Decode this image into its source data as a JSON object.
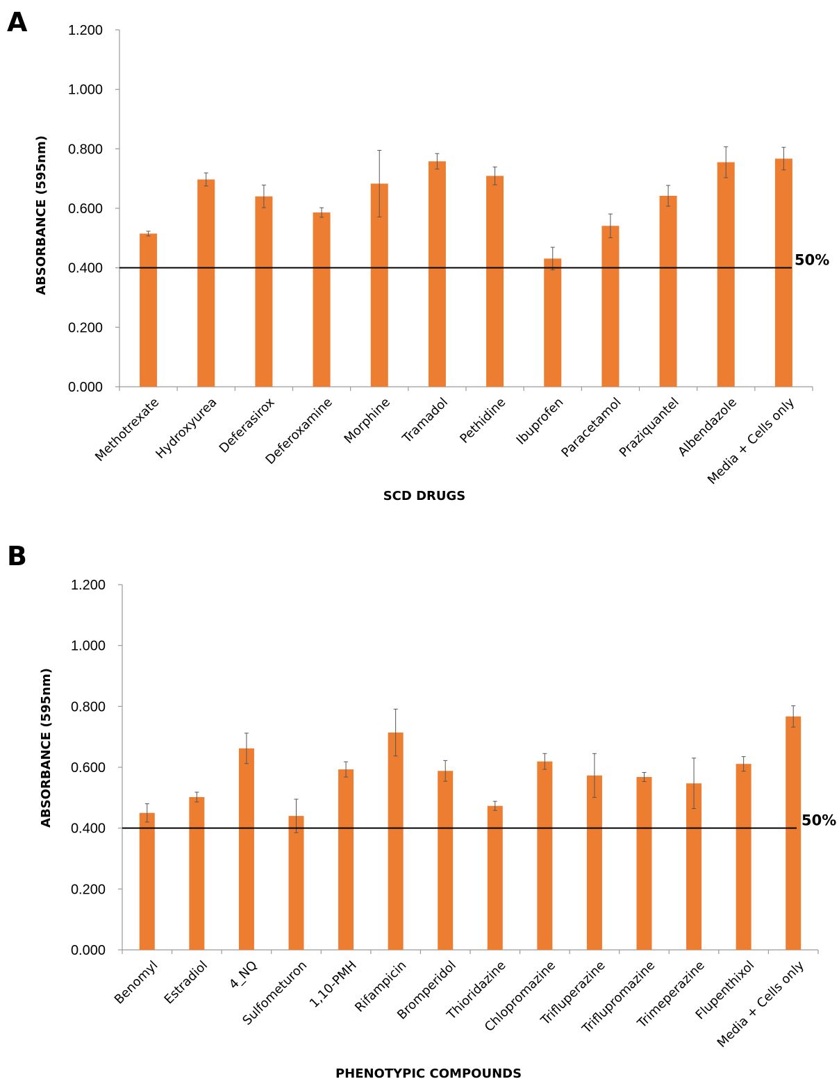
{
  "chart_data": [
    {
      "type": "bar",
      "panel": "A",
      "xlabel": "SCD DRUGS",
      "ylabel": "ABSORBANCE (595nm)",
      "ylim": [
        0,
        1.2
      ],
      "yticks": [
        "0.000",
        "0.200",
        "0.400",
        "0.600",
        "0.800",
        "1.000",
        "1.200"
      ],
      "categories": [
        "Methotrexate",
        "Hydroxyurea",
        "Deferasirox",
        "Deferoxamine",
        "Morphine",
        "Tramadol",
        "Pethidine",
        "Ibuprofen",
        "Paracetamol",
        "Praziquantel",
        "Albendazole",
        "Media + Cells only"
      ],
      "values": [
        0.515,
        0.697,
        0.64,
        0.586,
        0.683,
        0.758,
        0.709,
        0.431,
        0.541,
        0.642,
        0.755,
        0.767
      ],
      "errors": [
        0.008,
        0.022,
        0.038,
        0.016,
        0.112,
        0.026,
        0.03,
        0.038,
        0.04,
        0.035,
        0.052,
        0.038
      ],
      "reference_line": {
        "value": 0.4,
        "label": "50%"
      },
      "bar_color": "#ED7D31",
      "grid": false
    },
    {
      "type": "bar",
      "panel": "B",
      "xlabel": "PHENOTYPIC COMPOUNDS",
      "ylabel": "ABSORBANCE (595nm)",
      "ylim": [
        0,
        1.2
      ],
      "yticks": [
        "0.000",
        "0.200",
        "0.400",
        "0.600",
        "0.800",
        "1.000",
        "1.200"
      ],
      "categories": [
        "Benomyl",
        "Estradiol",
        "4_NQ",
        "Sulfometuron",
        "1,10-PMH",
        "Rifampicin",
        "Bromperidol",
        "Thioridazine",
        "Chlopromazine",
        "Trifluperazine",
        "Triflupromazine",
        "Trimeperazine",
        "Flupenthixol",
        "Media + Cells only"
      ],
      "values": [
        0.45,
        0.502,
        0.662,
        0.44,
        0.593,
        0.714,
        0.588,
        0.473,
        0.619,
        0.573,
        0.568,
        0.547,
        0.611,
        0.767
      ],
      "errors": [
        0.03,
        0.016,
        0.05,
        0.055,
        0.025,
        0.077,
        0.034,
        0.015,
        0.026,
        0.072,
        0.015,
        0.083,
        0.024,
        0.035
      ],
      "reference_line": {
        "value": 0.4,
        "label": "50%"
      },
      "bar_color": "#ED7D31",
      "grid": false
    }
  ]
}
